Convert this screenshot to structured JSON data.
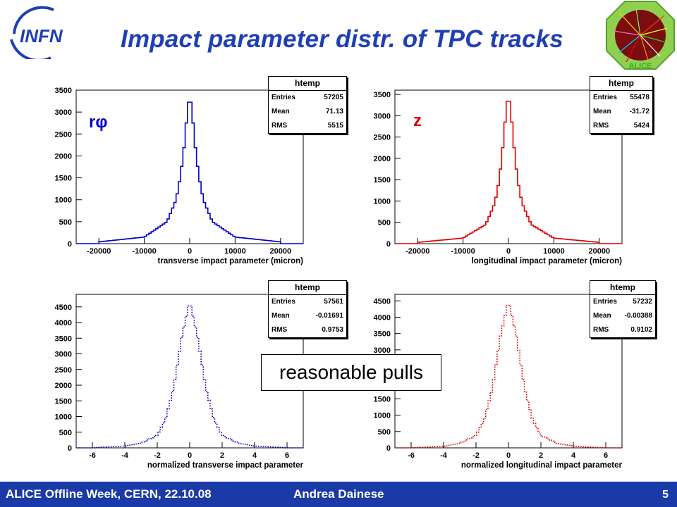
{
  "slide": {
    "title": "Impact parameter distr. of TPC tracks",
    "infn_logo_text": "INFN",
    "alice_logo_text": "ALICE",
    "callout": "reasonable pulls",
    "footer": {
      "left": "ALICE Offline Week, CERN, 22.10.08",
      "author": "Andrea Dainese",
      "page": "5"
    }
  },
  "colors": {
    "blue": "#0000cc",
    "red": "#dd0000",
    "title": "#1f3fb4",
    "footer_bg": "#1a3aa8"
  },
  "panels": [
    {
      "id": "rphi",
      "label": "rφ",
      "label_color": "#0000cc",
      "stats": {
        "title": "htemp",
        "entries_label": "Entries",
        "entries": "57205",
        "mean_label": "Mean",
        "mean": "71.13",
        "rms_label": "RMS",
        "rms": "5515"
      }
    },
    {
      "id": "z",
      "label": "z",
      "label_color": "#dd0000",
      "stats": {
        "title": "htemp",
        "entries_label": "Entries",
        "entries": "55478",
        "mean_label": "Mean",
        "mean": "-31.72",
        "rms_label": "RMS",
        "rms": "5424"
      }
    },
    {
      "id": "pull-rphi",
      "label": "",
      "stats": {
        "title": "htemp",
        "entries_label": "Entries",
        "entries": "57561",
        "mean_label": "Mean",
        "mean": "-0.01691",
        "rms_label": "RMS",
        "rms": "0.9753"
      }
    },
    {
      "id": "pull-z",
      "label": "",
      "stats": {
        "title": "htemp",
        "entries_label": "Entries",
        "entries": "57232",
        "mean_label": "Mean",
        "mean": "-0.00388",
        "rms_label": "RMS",
        "rms": "0.9102"
      }
    }
  ],
  "chart_data": [
    {
      "type": "histogram",
      "xlabel": "transverse impact parameter (micron)",
      "ylabel": "",
      "xlim": [
        -25000,
        25000
      ],
      "ylim": [
        0,
        3500
      ],
      "xticks": [
        -20000,
        -10000,
        0,
        10000,
        20000
      ],
      "yticks": [
        0,
        500,
        1000,
        1500,
        2000,
        2500,
        3000,
        3500
      ],
      "style": "solid",
      "color": "#0000cc",
      "x": [
        -20000,
        -10000,
        -5000,
        -3000,
        -2000,
        -1000,
        -500,
        0,
        500,
        1000,
        2000,
        3000,
        5000,
        10000,
        20000
      ],
      "y": [
        40,
        150,
        500,
        1000,
        1550,
        2400,
        3100,
        3350,
        3100,
        2400,
        1550,
        1000,
        500,
        150,
        40
      ]
    },
    {
      "type": "histogram",
      "xlabel": "longitudinal impact parameter (micron)",
      "ylabel": "",
      "xlim": [
        -25000,
        25000
      ],
      "ylim": [
        0,
        3600
      ],
      "xticks": [
        -20000,
        -10000,
        0,
        10000,
        20000
      ],
      "yticks": [
        0,
        500,
        1000,
        1500,
        2000,
        2500,
        3000,
        3500
      ],
      "style": "solid",
      "color": "#dd0000",
      "x": [
        -20000,
        -10000,
        -5000,
        -3000,
        -2000,
        -1000,
        -500,
        0,
        500,
        1000,
        2000,
        3000,
        5000,
        10000,
        20000
      ],
      "y": [
        30,
        130,
        450,
        950,
        1500,
        2500,
        3200,
        3480,
        3200,
        2500,
        1500,
        950,
        450,
        130,
        30
      ]
    },
    {
      "type": "histogram",
      "xlabel": "normalized transverse impact parameter",
      "ylabel": "",
      "xlim": [
        -7,
        7
      ],
      "ylim": [
        0,
        4900
      ],
      "xticks": [
        -6,
        -4,
        -2,
        0,
        2,
        4,
        6
      ],
      "yticks": [
        0,
        500,
        1000,
        1500,
        2000,
        2500,
        3000,
        3500,
        4000,
        4500
      ],
      "style": "dotted",
      "color": "#0000cc",
      "x": [
        -6,
        -4,
        -3,
        -2,
        -1.5,
        -1,
        -0.5,
        0,
        0.5,
        1,
        1.5,
        2,
        3,
        4,
        6
      ],
      "y": [
        0,
        60,
        150,
        400,
        900,
        1900,
        3500,
        4700,
        3500,
        1900,
        900,
        400,
        150,
        60,
        0
      ]
    },
    {
      "type": "histogram",
      "xlabel": "normalized longitudinal impact parameter",
      "ylabel": "",
      "xlim": [
        -7,
        7
      ],
      "ylim": [
        0,
        4700
      ],
      "xticks": [
        -6,
        -4,
        -2,
        0,
        2,
        4,
        6
      ],
      "yticks": [
        0,
        500,
        1000,
        1500,
        2000,
        2500,
        3000,
        3500,
        4000,
        4500
      ],
      "style": "dotted",
      "color": "#dd0000",
      "x": [
        -6,
        -4,
        -3,
        -2,
        -1.5,
        -1,
        -0.5,
        0,
        0.5,
        1,
        1.5,
        2,
        3,
        4,
        6
      ],
      "y": [
        0,
        50,
        140,
        380,
        850,
        1800,
        3400,
        4520,
        3400,
        1800,
        850,
        380,
        140,
        50,
        0
      ]
    }
  ]
}
